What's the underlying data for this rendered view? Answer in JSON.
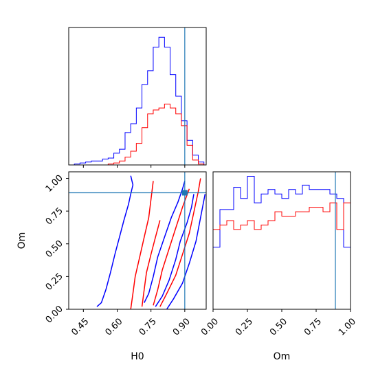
{
  "chart_data": {
    "type": "corner",
    "parameters": [
      "H0",
      "Om"
    ],
    "truths": {
      "H0": 0.9,
      "Om": 0.89
    },
    "truth_color": "#1f77b4",
    "series": [
      {
        "color": "#0000ff"
      },
      {
        "color": "#ff0000"
      }
    ],
    "panels": {
      "H0_hist": {
        "xlim": [
          0.385,
          0.995
        ],
        "bins": [
          0.385,
          0.41,
          0.435,
          0.46,
          0.485,
          0.51,
          0.535,
          0.56,
          0.585,
          0.61,
          0.635,
          0.66,
          0.685,
          0.71,
          0.735,
          0.76,
          0.785,
          0.81,
          0.835,
          0.86,
          0.885,
          0.91,
          0.935,
          0.96,
          0.985
        ],
        "counts": [
          [
            0,
            1,
            2,
            3,
            4,
            4,
            6,
            7,
            12,
            16,
            33,
            42,
            58,
            82,
            96,
            120,
            130,
            120,
            92,
            70,
            45,
            25,
            10,
            3
          ],
          [
            0,
            0,
            0,
            0,
            0,
            0,
            0,
            1,
            2,
            4,
            8,
            14,
            22,
            38,
            52,
            56,
            58,
            62,
            58,
            52,
            40,
            20,
            5,
            1
          ]
        ],
        "ymax": 140
      },
      "Om_hist": {
        "xlim": [
          0.0,
          1.0
        ],
        "xticks": [
          "0.00",
          "0.25",
          "0.50",
          "0.75",
          "1.00"
        ],
        "bins": [
          0.0,
          0.05,
          0.1,
          0.15,
          0.2,
          0.25,
          0.3,
          0.35,
          0.4,
          0.45,
          0.5,
          0.55,
          0.6,
          0.65,
          0.7,
          0.75,
          0.8,
          0.85,
          0.9,
          0.95,
          1.0
        ],
        "counts": [
          [
            28,
            45,
            45,
            55,
            50,
            60,
            48,
            52,
            54,
            52,
            50,
            54,
            52,
            56,
            54,
            54,
            54,
            52,
            50,
            28
          ],
          [
            36,
            38,
            40,
            36,
            38,
            40,
            36,
            38,
            40,
            44,
            42,
            42,
            44,
            44,
            46,
            46,
            44,
            48,
            36,
            48
          ]
        ],
        "ymax": 62
      },
      "Om_vs_H0": {
        "xlim": [
          0.385,
          0.995
        ],
        "ylim": [
          0.0,
          1.05
        ],
        "xticks": [
          "0.45",
          "0.60",
          "0.75",
          "0.90"
        ],
        "yticks": [
          "0.00",
          "0.25",
          "0.50",
          "0.75",
          "1.00"
        ],
        "contours": [
          {
            "series": 0,
            "points": [
              [
                0.51,
                0.02
              ],
              [
                0.53,
                0.05
              ],
              [
                0.55,
                0.15
              ],
              [
                0.57,
                0.28
              ],
              [
                0.59,
                0.42
              ],
              [
                0.61,
                0.55
              ],
              [
                0.63,
                0.68
              ],
              [
                0.65,
                0.8
              ],
              [
                0.66,
                0.88
              ],
              [
                0.67,
                0.95
              ],
              [
                0.66,
                1.02
              ]
            ]
          },
          {
            "series": 0,
            "points": [
              [
                0.72,
                0.05
              ],
              [
                0.74,
                0.12
              ],
              [
                0.76,
                0.25
              ],
              [
                0.78,
                0.4
              ],
              [
                0.81,
                0.55
              ],
              [
                0.84,
                0.7
              ],
              [
                0.87,
                0.82
              ],
              [
                0.89,
                0.92
              ],
              [
                0.9,
                0.98
              ]
            ]
          },
          {
            "series": 0,
            "points": [
              [
                0.77,
                0.02
              ],
              [
                0.8,
                0.1
              ],
              [
                0.83,
                0.22
              ],
              [
                0.86,
                0.38
              ],
              [
                0.88,
                0.52
              ],
              [
                0.91,
                0.66
              ],
              [
                0.93,
                0.78
              ],
              [
                0.94,
                0.88
              ]
            ]
          },
          {
            "series": 0,
            "points": [
              [
                0.82,
                0.0
              ],
              [
                0.85,
                0.08
              ],
              [
                0.89,
                0.2
              ],
              [
                0.92,
                0.35
              ],
              [
                0.95,
                0.52
              ],
              [
                0.97,
                0.7
              ],
              [
                0.99,
                0.88
              ]
            ]
          },
          {
            "series": 1,
            "points": [
              [
                0.66,
                0.0
              ],
              [
                0.67,
                0.12
              ],
              [
                0.68,
                0.25
              ],
              [
                0.7,
                0.4
              ],
              [
                0.72,
                0.55
              ],
              [
                0.74,
                0.7
              ],
              [
                0.75,
                0.84
              ],
              [
                0.76,
                0.98
              ]
            ]
          },
          {
            "series": 1,
            "points": [
              [
                0.71,
                0.02
              ],
              [
                0.72,
                0.15
              ],
              [
                0.73,
                0.28
              ],
              [
                0.75,
                0.42
              ],
              [
                0.77,
                0.55
              ],
              [
                0.79,
                0.68
              ]
            ]
          },
          {
            "series": 1,
            "points": [
              [
                0.76,
                0.03
              ],
              [
                0.78,
                0.15
              ],
              [
                0.8,
                0.3
              ],
              [
                0.83,
                0.46
              ],
              [
                0.86,
                0.62
              ],
              [
                0.89,
                0.78
              ],
              [
                0.92,
                0.92
              ]
            ]
          },
          {
            "series": 1,
            "points": [
              [
                0.79,
                0.02
              ],
              [
                0.82,
                0.12
              ],
              [
                0.86,
                0.26
              ],
              [
                0.89,
                0.42
              ],
              [
                0.92,
                0.58
              ],
              [
                0.94,
                0.74
              ],
              [
                0.96,
                0.9
              ],
              [
                0.97,
                1.0
              ]
            ]
          }
        ]
      }
    },
    "xlabels": {
      "H0": "H0",
      "Om": "Om"
    },
    "ylabel": "Om"
  }
}
